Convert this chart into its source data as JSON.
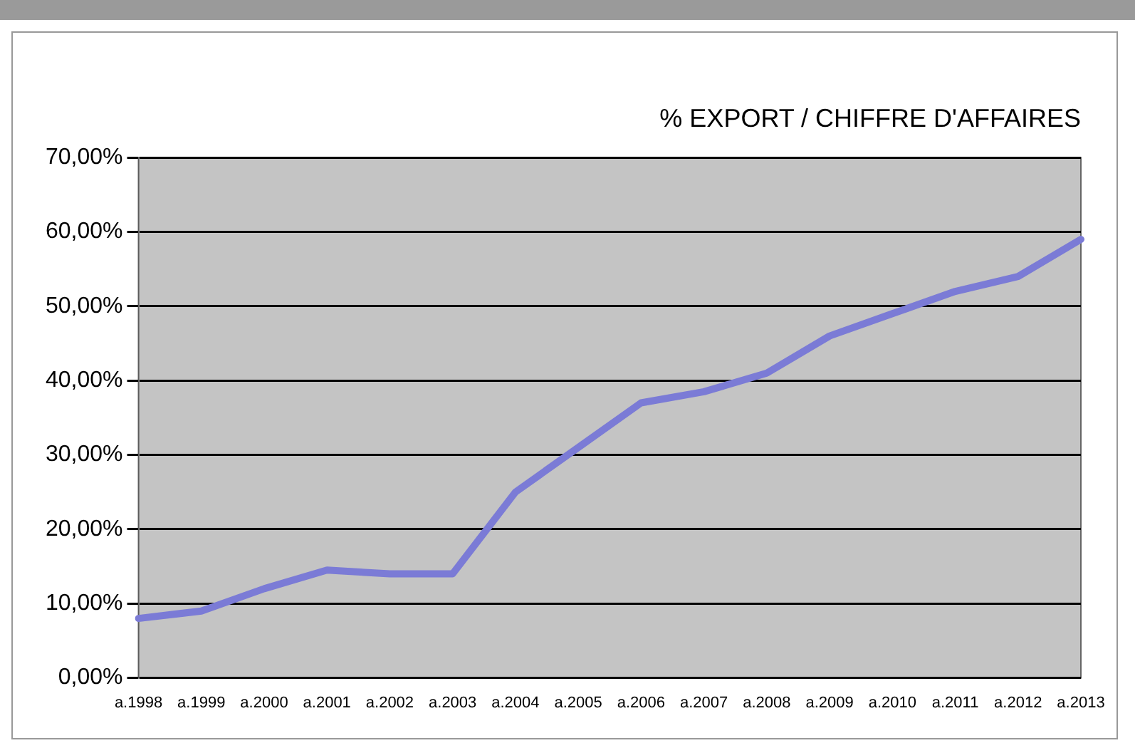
{
  "chart_data": {
    "type": "line",
    "title": "% EXPORT / CHIFFRE D'AFFAIRES",
    "categories": [
      "a.1998",
      "a.1999",
      "a.2000",
      "a.2001",
      "a.2002",
      "a.2003",
      "a.2004",
      "a.2005",
      "a.2006",
      "a.2007",
      "a.2008",
      "a.2009",
      "a.2010",
      "a.2011",
      "a.2012",
      "a.2013"
    ],
    "series": [
      {
        "color": "#7b7bd6",
        "values": [
          8,
          9,
          12,
          14.5,
          14,
          14,
          25,
          31,
          37,
          38.5,
          41,
          46,
          49,
          52,
          54,
          59
        ]
      }
    ],
    "ylim": [
      0,
      70
    ],
    "yticks": [
      {
        "value": 0,
        "label": "0,00%"
      },
      {
        "value": 10,
        "label": "10,00%"
      },
      {
        "value": 20,
        "label": "20,00%"
      },
      {
        "value": 30,
        "label": "30,00%"
      },
      {
        "value": 40,
        "label": "40,00%"
      },
      {
        "value": 50,
        "label": "50,00%"
      },
      {
        "value": 60,
        "label": "60,00%"
      },
      {
        "value": 70,
        "label": "70,00%"
      }
    ],
    "grid": "y",
    "legend": false,
    "marker": "none",
    "line_style": "solid"
  }
}
